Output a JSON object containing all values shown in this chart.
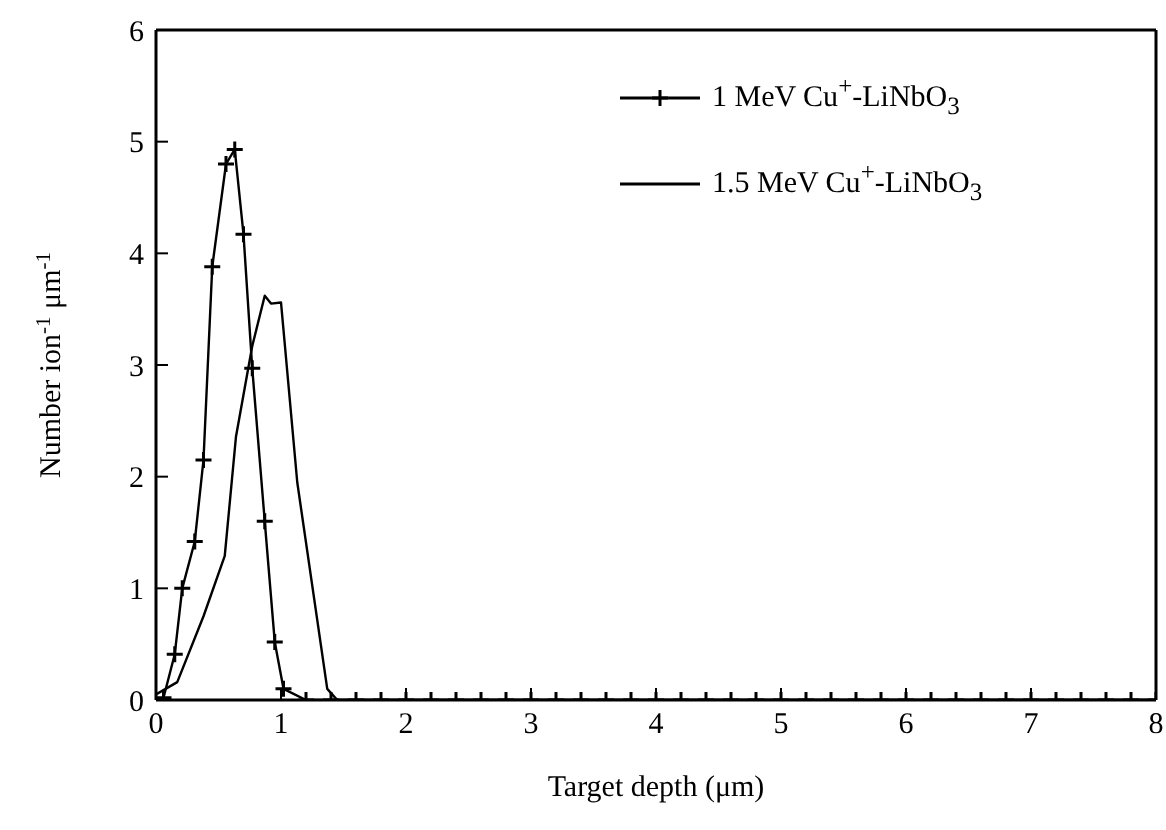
{
  "chart_data": {
    "type": "line",
    "xlabel": "Target depth (μm)",
    "ylabel": "Number ion$^{-1}$ μm$^{-1}$",
    "xlim": [
      0,
      8
    ],
    "xticks": [
      0,
      1,
      2,
      3,
      4,
      5,
      6,
      7,
      8
    ],
    "ylim": [
      0,
      6
    ],
    "yticks": [
      0,
      1,
      2,
      3,
      4,
      5,
      6
    ],
    "legend": "top right",
    "series": [
      {
        "name": "1 MeV Cu$^{+}$-LiNbO$_{3}$",
        "color": "#000000",
        "marker": "cross",
        "line_style": "solid",
        "x": [
          0.06,
          0.15,
          0.21,
          0.31,
          0.38,
          0.45,
          0.56,
          0.63,
          0.7,
          0.77,
          0.87,
          0.95,
          1.02,
          1.2,
          1.4,
          1.6,
          1.8,
          2.0,
          2.2,
          2.4,
          2.6,
          2.8,
          3.0,
          3.2,
          3.4,
          3.6,
          3.8,
          4.0,
          4.2,
          4.4,
          4.6,
          4.8,
          5.0,
          5.2,
          5.4,
          5.6,
          5.8,
          6.0,
          6.2,
          6.4,
          6.6,
          6.8,
          7.0,
          7.2,
          7.4,
          7.6,
          7.8,
          8.0
        ],
        "values": [
          0.02,
          0.41,
          1.0,
          1.42,
          2.15,
          3.88,
          4.8,
          4.93,
          4.17,
          2.97,
          1.6,
          0.52,
          0.1,
          0,
          0,
          0,
          0,
          0,
          0,
          0,
          0,
          0,
          0,
          0,
          0,
          0,
          0,
          0,
          0,
          0,
          0,
          0,
          0,
          0,
          0,
          0,
          0,
          0,
          0,
          0,
          0,
          0,
          0,
          0,
          0,
          0,
          0,
          0
        ]
      },
      {
        "name": "1.5 MeV Cu$^{+}$-LiNbO$_{3}$",
        "color": "#000000",
        "marker": "none",
        "line_style": "solid",
        "x": [
          0,
          0.17,
          0.38,
          0.55,
          0.64,
          0.77,
          0.87,
          0.92,
          1.0,
          1.13,
          1.37,
          1.45,
          2,
          3,
          4,
          5,
          6,
          7,
          8
        ],
        "values": [
          0.05,
          0.16,
          0.75,
          1.29,
          2.36,
          3.17,
          3.62,
          3.55,
          3.56,
          1.95,
          0.1,
          0,
          0,
          0,
          0,
          0,
          0,
          0,
          0
        ]
      }
    ]
  }
}
